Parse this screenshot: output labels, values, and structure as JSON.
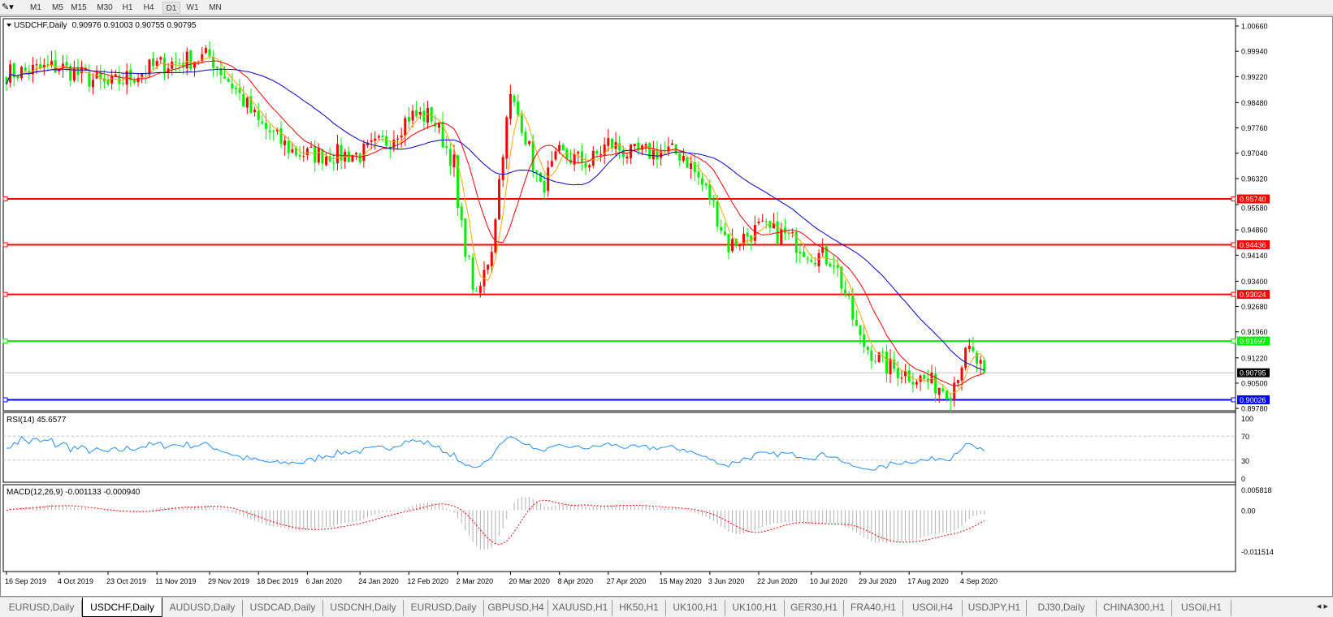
{
  "toolbar": {
    "timeframes": [
      "M1",
      "M5",
      "M15",
      "M30",
      "H1",
      "H4",
      "D1",
      "W1",
      "MN"
    ],
    "active": "D1"
  },
  "chart_header": {
    "symbol": "USDCHF,Daily",
    "ohlc": "0.90976 0.91003 0.90755 0.90795"
  },
  "rsi_label": "RSI(14) 45.6577",
  "macd_label": "MACD(12,26,9) -0.001133 -0.000940",
  "tabs": [
    "EURUSD,Daily",
    "USDCHF,Daily",
    "AUDUSD,Daily",
    "USDCAD,Daily",
    "USDCNH,Daily",
    "EURUSD,Daily",
    "GBPUSD,H4",
    "XAUUSD,H1",
    "HK50,H1",
    "UK100,H1",
    "UK100,H1",
    "GER30,H1",
    "FRA40,H1",
    "USOil,H4",
    "USDJPY,H1",
    "DJ30,Daily",
    "CHINA300,H1",
    "USOil,H1"
  ],
  "active_tab": "USDCHF,Daily",
  "colors": {
    "bull": "#ff0000",
    "bear": "#00ee00",
    "ma_fast": "#ffa500",
    "ma_mid": "#ff0000",
    "ma_slow": "#0000cc",
    "rsi": "#1e90ff",
    "macd_signal": "#ff0000",
    "macd_hist": "#b0b0b0"
  },
  "chart_data": {
    "type": "candlestick",
    "symbol": "USDCHF",
    "timeframe": "Daily",
    "price_ticks": [
      "1.00660",
      "0.99940",
      "0.99220",
      "0.98480",
      "0.97760",
      "0.97040",
      "0.96320",
      "0.95580",
      "0.94860",
      "0.94140",
      "0.93400",
      "0.92680",
      "0.91960",
      "0.91220",
      "0.90500",
      "0.89780"
    ],
    "ylim": [
      0.8978,
      1.0066
    ],
    "date_ticks": [
      [
        "2019-09-16",
        "16 Sep 2019"
      ],
      [
        "2019-10-04",
        "4 Oct 2019"
      ],
      [
        "2019-10-23",
        "23 Oct 2019"
      ],
      [
        "2019-11-11",
        "11 Nov 2019"
      ],
      [
        "2019-11-29",
        "29 Nov 2019"
      ],
      [
        "2019-12-18",
        "18 Dec 2019"
      ],
      [
        "2020-01-06",
        "6 Jan 2020"
      ],
      [
        "2020-01-24",
        "24 Jan 2020"
      ],
      [
        "2020-02-12",
        "12 Feb 2020"
      ],
      [
        "2020-03-02",
        "2 Mar 2020"
      ],
      [
        "2020-03-20",
        "20 Mar 2020"
      ],
      [
        "2020-04-08",
        "8 Apr 2020"
      ],
      [
        "2020-04-27",
        "27 Apr 2020"
      ],
      [
        "2020-05-15",
        "15 May 2020"
      ],
      [
        "2020-06-03",
        "3 Jun 2020"
      ],
      [
        "2020-06-22",
        "22 Jun 2020"
      ],
      [
        "2020-07-10",
        "10 Jul 2020"
      ],
      [
        "2020-07-29",
        "29 Jul 2020"
      ],
      [
        "2020-08-17",
        "17 Aug 2020"
      ],
      [
        "2020-09-04",
        "4 Sep 2020"
      ]
    ],
    "close_approx": [
      [
        "2019-09-16",
        0.993
      ],
      [
        "2019-10-04",
        0.995
      ],
      [
        "2019-10-23",
        0.9895
      ],
      [
        "2019-11-11",
        0.9953
      ],
      [
        "2019-11-29",
        0.998
      ],
      [
        "2019-12-10",
        0.9884
      ],
      [
        "2019-12-18",
        0.979
      ],
      [
        "2019-12-31",
        0.971
      ],
      [
        "2020-01-06",
        0.97
      ],
      [
        "2020-01-24",
        0.97
      ],
      [
        "2020-02-05",
        0.9745
      ],
      [
        "2020-02-12",
        0.981
      ],
      [
        "2020-02-20",
        0.981
      ],
      [
        "2020-02-28",
        0.9676
      ],
      [
        "2020-03-02",
        0.954
      ],
      [
        "2020-03-09",
        0.9283
      ],
      [
        "2020-03-13",
        0.944
      ],
      [
        "2020-03-18",
        0.972
      ],
      [
        "2020-03-20",
        0.986
      ],
      [
        "2020-03-25",
        0.979
      ],
      [
        "2020-04-01",
        0.96
      ],
      [
        "2020-04-08",
        0.97
      ],
      [
        "2020-04-20",
        0.9676
      ],
      [
        "2020-04-27",
        0.9733
      ],
      [
        "2020-05-05",
        0.97
      ],
      [
        "2020-05-15",
        0.971
      ],
      [
        "2020-05-25",
        0.97
      ],
      [
        "2020-06-03",
        0.958
      ],
      [
        "2020-06-10",
        0.944
      ],
      [
        "2020-06-22",
        0.949
      ],
      [
        "2020-07-01",
        0.947
      ],
      [
        "2020-07-10",
        0.942
      ],
      [
        "2020-07-20",
        0.94
      ],
      [
        "2020-07-29",
        0.917
      ],
      [
        "2020-08-07",
        0.9098
      ],
      [
        "2020-08-17",
        0.9075
      ],
      [
        "2020-08-25",
        0.905
      ],
      [
        "2020-09-01",
        0.903
      ],
      [
        "2020-09-04",
        0.911
      ],
      [
        "2020-09-08",
        0.914
      ],
      [
        "2020-09-14",
        0.90795
      ]
    ],
    "hlines": [
      {
        "price": "0.95740",
        "color": "#ff0000"
      },
      {
        "price": "0.94436",
        "color": "#ff0000"
      },
      {
        "price": "0.93024",
        "color": "#ff0000"
      },
      {
        "price": "0.91697",
        "color": "#00ee00"
      },
      {
        "price": "0.90026",
        "color": "#0000ff"
      }
    ],
    "current_price": "0.90795",
    "rsi": {
      "ticks": [
        "100",
        "70",
        "30",
        "0"
      ],
      "levels": [
        70,
        30
      ]
    },
    "macd": {
      "ticks": [
        "0.005818",
        "0.00",
        "-0.011514"
      ],
      "ylim": [
        -0.011514,
        0.005818
      ]
    }
  }
}
